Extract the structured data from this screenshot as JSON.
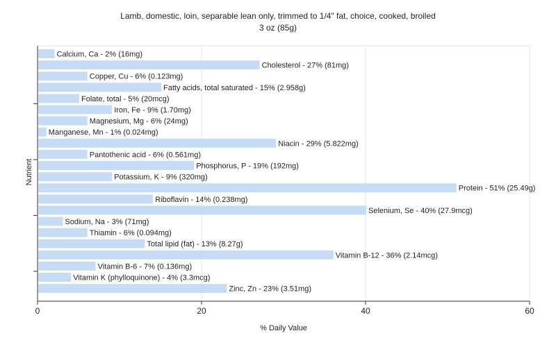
{
  "chart_data": {
    "type": "bar",
    "orientation": "horizontal",
    "title": "Lamb, domestic, loin, separable lean only, trimmed to 1/4\" fat, choice, cooked, broiled",
    "subtitle": "3 oz (85g)",
    "xlabel": "% Daily Value",
    "ylabel": "Nutrient",
    "xlim": [
      0,
      60
    ],
    "xticks": [
      0,
      20,
      40,
      60
    ],
    "grid": true,
    "bar_color": "#c6dcf5",
    "categories": [
      "Calcium, Ca",
      "Cholesterol",
      "Copper, Cu",
      "Fatty acids, total saturated",
      "Folate, total",
      "Iron, Fe",
      "Magnesium, Mg",
      "Manganese, Mn",
      "Niacin",
      "Pantothenic acid",
      "Phosphorus, P",
      "Potassium, K",
      "Protein",
      "Riboflavin",
      "Selenium, Se",
      "Sodium, Na",
      "Thiamin",
      "Total lipid (fat)",
      "Vitamin B-12",
      "Vitamin B-6",
      "Vitamin K (phylloquinone)",
      "Zinc, Zn"
    ],
    "values": [
      2,
      27,
      6,
      15,
      5,
      9,
      6,
      1,
      29,
      6,
      19,
      9,
      51,
      14,
      40,
      3,
      6,
      13,
      36,
      7,
      4,
      23
    ],
    "labels": [
      "Calcium, Ca - 2% (16mg)",
      "Cholesterol - 27% (81mg)",
      "Copper, Cu - 6% (0.123mg)",
      "Fatty acids, total saturated - 15% (2.958g)",
      "Folate, total - 5% (20mcg)",
      "Iron, Fe - 9% (1.70mg)",
      "Magnesium, Mg - 6% (24mg)",
      "Manganese, Mn - 1% (0.024mg)",
      "Niacin - 29% (5.822mg)",
      "Pantothenic acid - 6% (0.561mg)",
      "Phosphorus, P - 19% (192mg)",
      "Potassium, K - 9% (320mg)",
      "Protein - 51% (25.49g)",
      "Riboflavin - 14% (0.238mg)",
      "Selenium, Se - 40% (27.9mcg)",
      "Sodium, Na - 3% (71mg)",
      "Thiamin - 6% (0.094mg)",
      "Total lipid (fat) - 13% (8.27g)",
      "Vitamin B-12 - 36% (2.14mcg)",
      "Vitamin B-6 - 7% (0.136mg)",
      "Vitamin K (phylloquinone) - 4% (3.3mcg)",
      "Zinc, Zn - 23% (3.51mg)"
    ]
  }
}
